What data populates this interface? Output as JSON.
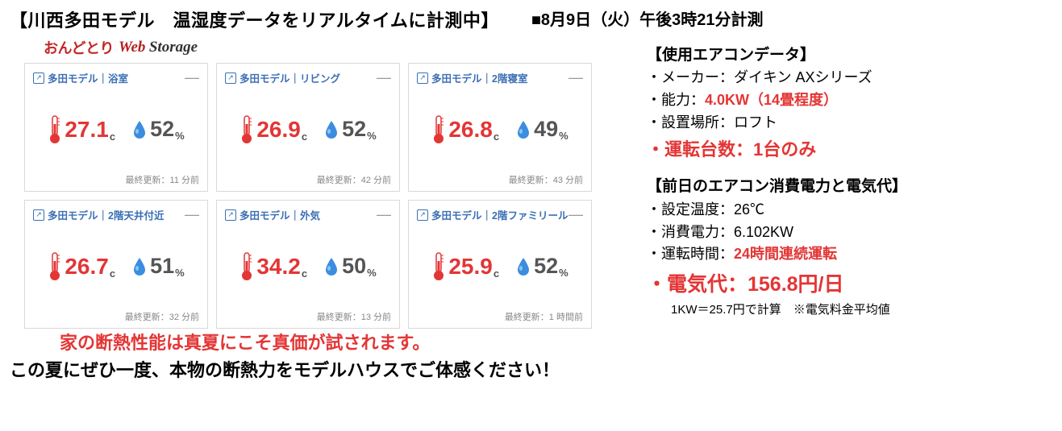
{
  "colors": {
    "background": "#ffffff",
    "text": "#000000",
    "red": "#e43535",
    "logo_red": "#c32727",
    "card_blue": "#3b6fb5",
    "grey_text": "#555555",
    "border": "#d9d9d9",
    "footer_grey": "#888888",
    "gauge": "#eeeeee"
  },
  "header": {
    "main_title": "【川西多田モデル　温湿度データをリアルタイムに計測中】",
    "timestamp": "■8月9日（火）午後3時21分計測"
  },
  "logo": {
    "ondotori": "おんどとり",
    "web": "Web",
    "storage": "Storage"
  },
  "cards": [
    {
      "title": "多田モデル｜浴室",
      "temp": "27.1",
      "hum": "52",
      "updated": "最終更新：11 分前"
    },
    {
      "title": "多田モデル｜リビング",
      "temp": "26.9",
      "hum": "52",
      "updated": "最終更新：42 分前"
    },
    {
      "title": "多田モデル｜2階寝室",
      "temp": "26.8",
      "hum": "49",
      "updated": "最終更新：43 分前"
    },
    {
      "title": "多田モデル｜2階天井付近",
      "temp": "26.7",
      "hum": "51",
      "updated": "最終更新：32 分前"
    },
    {
      "title": "多田モデル｜外気",
      "temp": "34.2",
      "hum": "50",
      "updated": "最終更新：13 分前"
    },
    {
      "title": "多田モデル｜2階ファミリール",
      "temp": "25.9",
      "hum": "52",
      "updated": "最終更新：1 時間前"
    }
  ],
  "units": {
    "temp_c": "c",
    "hum_pct": "%"
  },
  "ac_section": {
    "title": "【使用エアコンデータ】",
    "maker": "・メーカー：ダイキン  AXシリーズ",
    "capacity_label": "・能力：",
    "capacity_value": "4.0KW（14畳程度）",
    "location": "・設置場所：ロフト",
    "units_running": "・運転台数：1台のみ"
  },
  "prev_day_section": {
    "title": "【前日のエアコン消費電力と電気代】",
    "set_temp": "・設定温度：26℃",
    "consumption": "・消費電力：6.102KW",
    "runtime_label": "・運転時間：",
    "runtime_value": "24時間連続運転",
    "price": "・電気代：156.8円/日",
    "price_note": "1KW＝25.7円で計算　※電気料金平均値"
  },
  "footer": {
    "red_line": "家の断熱性能は真夏にこそ真価が試されます。",
    "black_line": "この夏にぜひ一度、本物の断熱力をモデルハウスでご体感ください！"
  }
}
